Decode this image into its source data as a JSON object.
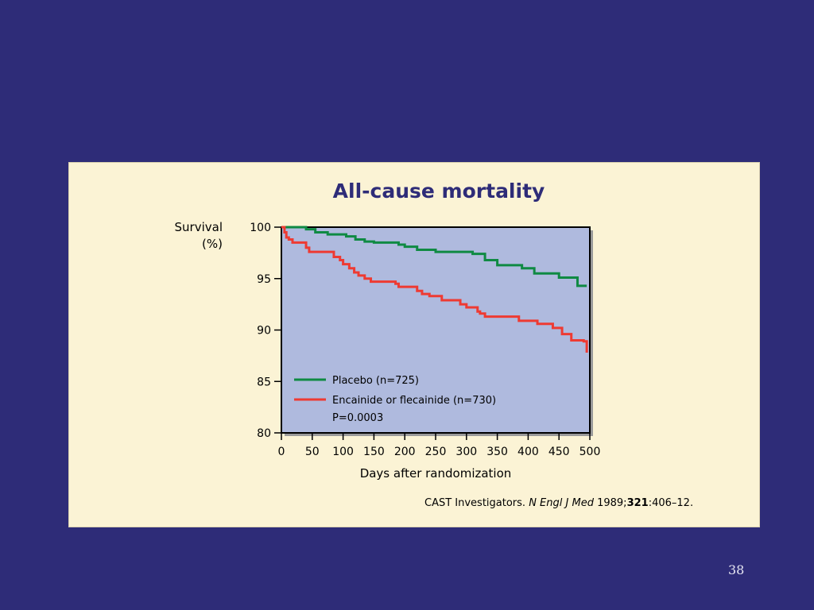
{
  "slide": {
    "number": "38",
    "citation": {
      "authors": "CAST Investigators.",
      "journal": "N Engl J Med",
      "year": "1989;",
      "volume": "321",
      "pages": ":406–12."
    }
  },
  "colors": {
    "background": "#2e2c78",
    "panel": "#fbf3d5",
    "plot_area": "#afbade",
    "placebo": "#0f8a43",
    "encainide": "#ee3a32",
    "title": "#2e2c78"
  },
  "chart_data": {
    "type": "line",
    "title": "All-cause mortality",
    "ylabel_line1": "Survival",
    "ylabel_line2": "(%)",
    "xlabel": "Days after randomization",
    "xlim": [
      0,
      500
    ],
    "ylim": [
      80,
      100
    ],
    "xticks": [
      0,
      50,
      100,
      150,
      200,
      250,
      300,
      350,
      400,
      450,
      500
    ],
    "yticks": [
      80,
      85,
      90,
      95,
      100
    ],
    "grid": false,
    "legend_position": "bottom-left",
    "annotation": "P=0.0003",
    "series": [
      {
        "name": "Placebo (n=725)",
        "color": "#0f8a43",
        "step": true,
        "x": [
          0,
          40,
          55,
          75,
          105,
          120,
          135,
          150,
          190,
          200,
          220,
          250,
          310,
          330,
          350,
          390,
          410,
          450,
          480,
          495
        ],
        "y": [
          100,
          99.8,
          99.5,
          99.3,
          99.1,
          98.8,
          98.6,
          98.5,
          98.3,
          98.1,
          97.8,
          97.6,
          97.4,
          96.8,
          96.3,
          96.0,
          95.5,
          95.1,
          94.3,
          94.3
        ]
      },
      {
        "name": "Encainide or flecainide (n=730)",
        "color": "#ee3a32",
        "step": true,
        "x": [
          0,
          5,
          8,
          12,
          18,
          40,
          45,
          85,
          95,
          100,
          110,
          118,
          125,
          135,
          145,
          185,
          190,
          220,
          228,
          240,
          260,
          290,
          300,
          318,
          322,
          330,
          385,
          415,
          440,
          455,
          470,
          490,
          495
        ],
        "y": [
          100,
          99.5,
          99.0,
          98.8,
          98.5,
          98.0,
          97.6,
          97.1,
          96.8,
          96.4,
          96.0,
          95.6,
          95.3,
          95.0,
          94.7,
          94.5,
          94.2,
          93.8,
          93.5,
          93.3,
          92.9,
          92.5,
          92.2,
          91.8,
          91.6,
          91.3,
          90.9,
          90.6,
          90.2,
          89.6,
          89.0,
          88.9,
          87.8
        ]
      }
    ]
  }
}
